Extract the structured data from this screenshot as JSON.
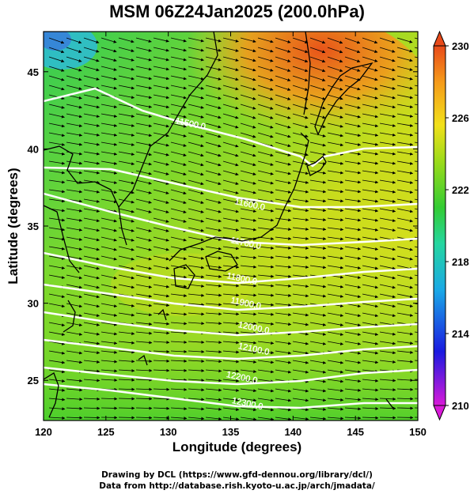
{
  "title": "MSM 06Z24Jan2025 (200.0hPa)",
  "map": {
    "xlabel": "Longitude (degrees)",
    "ylabel": "Latitude  (degrees)",
    "x_range": [
      120,
      150
    ],
    "y_range": [
      22.4,
      47.6
    ],
    "x_ticks": [
      "120",
      "125",
      "130",
      "135",
      "140",
      "145",
      "150"
    ],
    "y_ticks": [
      "25",
      "30",
      "35",
      "40",
      "45"
    ],
    "contour_labels": [
      "11500.0",
      "11600.0",
      "11700.0",
      "11800.0",
      "11900.0",
      "12000.0",
      "12100.0",
      "12200.0",
      "12300.0"
    ],
    "shaded_field": "temperature",
    "vector_field": "wind arrows",
    "colors": {
      "cold": "#2bd0e0",
      "mid": "#3ccf3c",
      "warm": "#f5d51a",
      "hot": "#e84a10",
      "contour": "#ffffff",
      "coast": "#000000"
    }
  },
  "colorbar": {
    "min": 210,
    "max": 230,
    "tick_labels": [
      "230",
      "226",
      "222",
      "218",
      "214",
      "210"
    ],
    "colors": [
      "#d91ad9",
      "#1a1ae0",
      "#1aa8e6",
      "#25d6a0",
      "#33cc33",
      "#9ddb1a",
      "#f2e01a",
      "#f59a1a",
      "#e84a1a"
    ]
  },
  "credits": {
    "line1": "Drawing by DCL (https://www.gfd-dennou.org/library/dcl/)",
    "line2": "Data from http://database.rish.kyoto-u.ac.jp/arch/jmadata/"
  }
}
